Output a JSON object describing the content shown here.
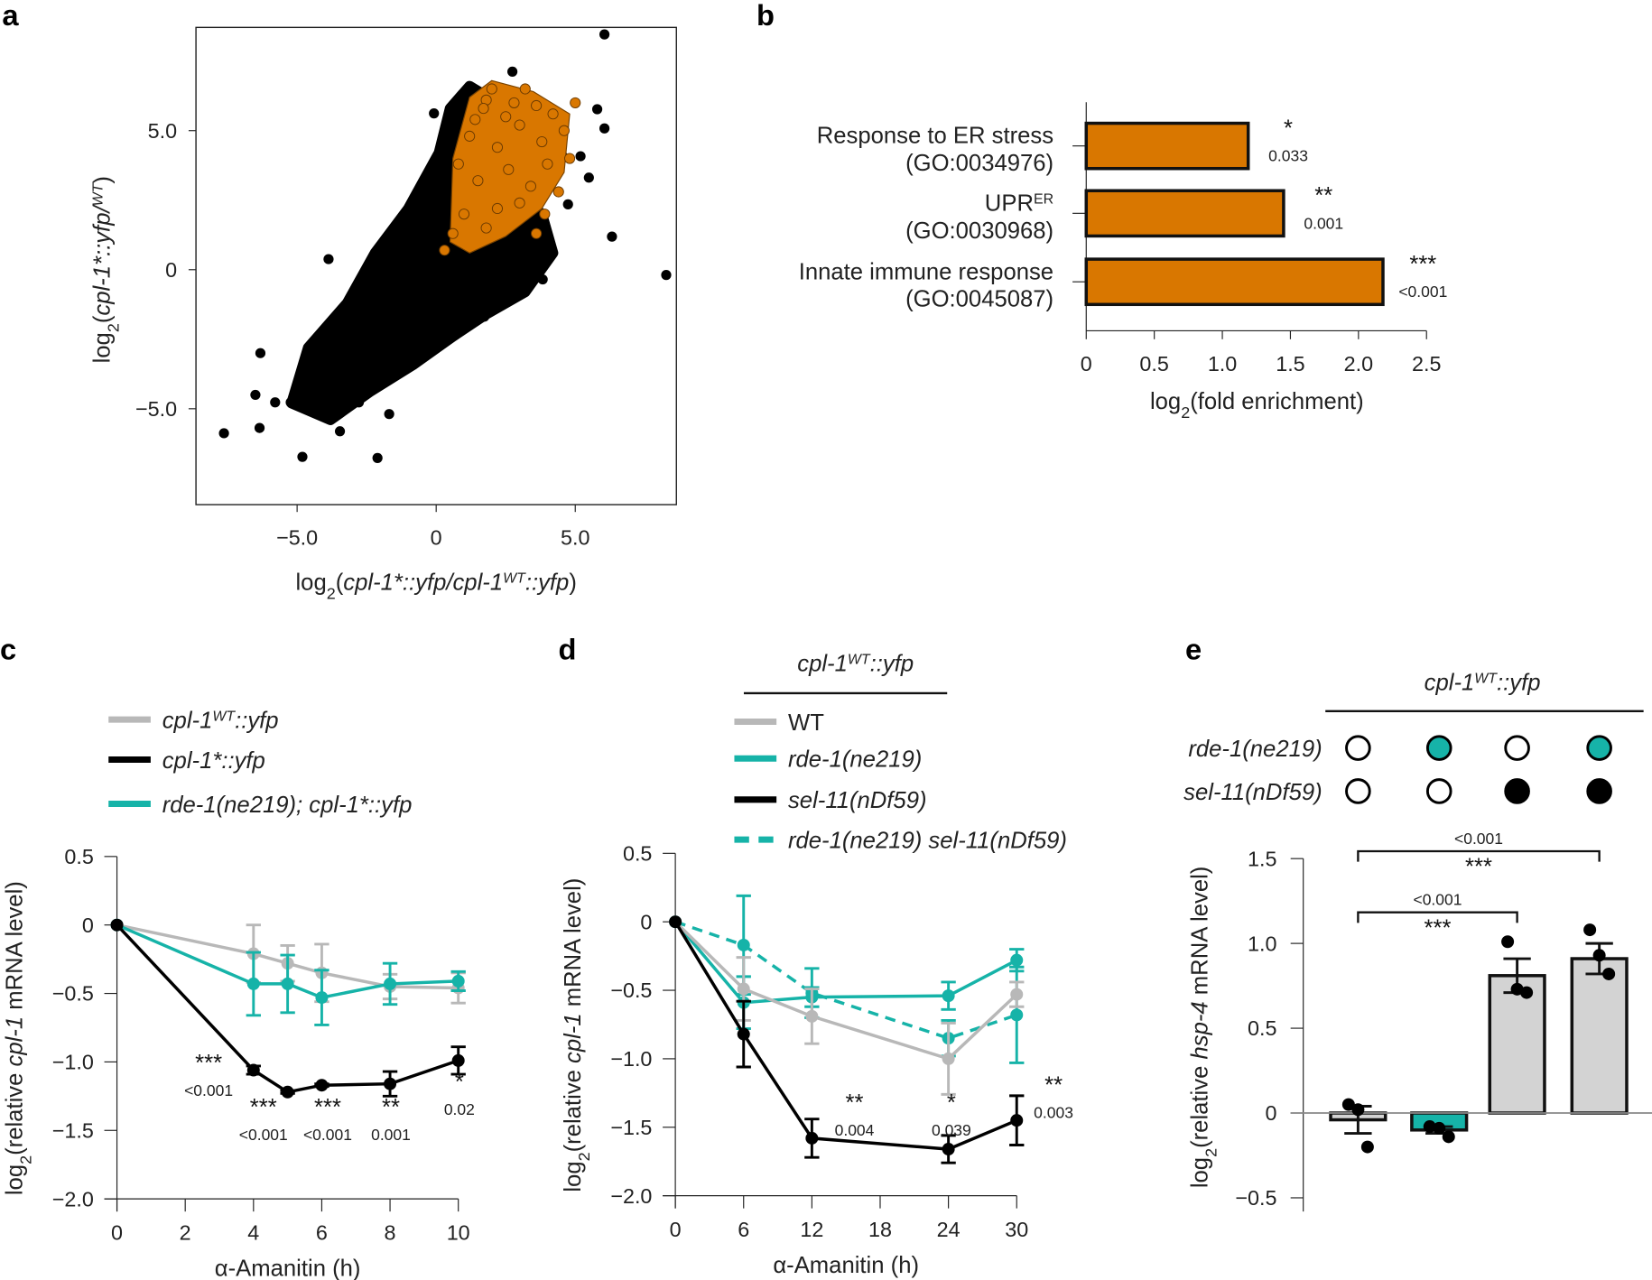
{
  "panel_letters": [
    "a",
    "b",
    "c",
    "d",
    "e"
  ],
  "colors": {
    "black": "#000000",
    "orange": "#d97700",
    "teal": "#16b3a8",
    "gray": "#b8b8b8",
    "bar_gray": "#d3d3d3"
  },
  "chart_data": [
    {
      "panel": "a",
      "type": "scatter",
      "xlabel": [
        [
          "log",
          ""
        ],
        [
          "2",
          "sub"
        ],
        [
          "(",
          ""
        ],
        [
          "cpl-1*::yfp/cpl-1",
          "i"
        ],
        [
          "WT",
          "isup"
        ],
        [
          "::yfp",
          "i"
        ],
        [
          ")",
          ""
        ]
      ],
      "ylabel": [
        [
          "log",
          ""
        ],
        [
          "2",
          "sub"
        ],
        [
          "(",
          ""
        ],
        [
          "cpl-1*::yfp/",
          "i"
        ],
        [
          "WT",
          "isup"
        ],
        [
          ")",
          ""
        ]
      ],
      "xlim": [
        -8.6,
        8.6
      ],
      "ylim": [
        -8.6,
        8.8
      ],
      "xticks": [
        {
          "v": -5,
          "label": "−5.0"
        },
        {
          "v": 0,
          "label": "0"
        },
        {
          "v": 5,
          "label": "5.0"
        }
      ],
      "yticks": [
        {
          "v": 5,
          "label": "5.0"
        },
        {
          "v": 0,
          "label": "0"
        },
        {
          "v": -5,
          "label": "−5.0"
        }
      ],
      "grid": false,
      "dense_region_all_genes": [
        [
          -5.2,
          -4.8
        ],
        [
          -4.6,
          -2.8
        ],
        [
          -3.2,
          -1.2
        ],
        [
          -2.2,
          0.6
        ],
        [
          -1,
          2.2
        ],
        [
          0.1,
          4.2
        ],
        [
          0.5,
          5.8
        ],
        [
          1.2,
          6.6
        ],
        [
          2.2,
          6.0
        ],
        [
          2.6,
          3.0
        ],
        [
          3.8,
          2.0
        ],
        [
          4.2,
          0.6
        ],
        [
          3.2,
          -0.8
        ],
        [
          1.8,
          -1.6
        ],
        [
          0.6,
          -2.4
        ],
        [
          -0.8,
          -3.4
        ],
        [
          -2.4,
          -4.4
        ],
        [
          -3.8,
          -5.4
        ]
      ],
      "dense_region_highlighted": [
        [
          0.5,
          1
        ],
        [
          0.6,
          4
        ],
        [
          1.2,
          6.2
        ],
        [
          2,
          6.8
        ],
        [
          3.5,
          6.4
        ],
        [
          4.8,
          5.6
        ],
        [
          4.6,
          3.5
        ],
        [
          3.8,
          2.2
        ],
        [
          2.5,
          1.2
        ],
        [
          1.2,
          0.6
        ]
      ],
      "points_all_genes": [
        [
          6.05,
          8.46
        ],
        [
          8.27,
          -0.19
        ],
        [
          6.32,
          1.19
        ],
        [
          -7.63,
          -5.88
        ],
        [
          -6.32,
          -3.0
        ],
        [
          -6.5,
          -4.5
        ],
        [
          -6.35,
          -5.69
        ],
        [
          -4.81,
          -6.73
        ],
        [
          -2.11,
          -6.77
        ],
        [
          -1.69,
          -5.19
        ],
        [
          -3.87,
          0.38
        ],
        [
          -3.46,
          -5.81
        ],
        [
          2.74,
          7.12
        ],
        [
          6.05,
          5.08
        ],
        [
          3.83,
          -0.35
        ],
        [
          5.79,
          5.77
        ],
        [
          5.19,
          4.08
        ],
        [
          4.74,
          2.35
        ],
        [
          -0.08,
          5.62
        ],
        [
          0.23,
          4.08
        ],
        [
          -0.71,
          2.54
        ],
        [
          -2.18,
          0.04
        ],
        [
          -2.97,
          -1.31
        ],
        [
          -4.66,
          -3.62
        ],
        [
          -5.79,
          -4.77
        ],
        [
          -4.29,
          -4.58
        ],
        [
          -3.16,
          -3.42
        ],
        [
          -2.78,
          -4.77
        ],
        [
          -3.53,
          -2.85
        ],
        [
          2.11,
          -0.92
        ],
        [
          3.23,
          0.23
        ],
        [
          3.61,
          1.0
        ],
        [
          4.55,
          4.08
        ],
        [
          5.49,
          3.31
        ],
        [
          1.35,
          6.38
        ],
        [
          0.71,
          5.31
        ],
        [
          1.73,
          -1.69
        ],
        [
          0.6,
          -1.69
        ],
        [
          -1.28,
          -2.85
        ],
        [
          -2.41,
          -2.46
        ],
        [
          -5.23,
          -4.77
        ]
      ],
      "points_highlighted": [
        [
          3.2,
          6.5
        ],
        [
          5.0,
          6.0
        ],
        [
          1.8,
          6.1
        ],
        [
          3.6,
          1.3
        ],
        [
          0.3,
          0.7
        ],
        [
          2.0,
          6.5
        ],
        [
          1.7,
          5.8
        ],
        [
          2.5,
          5.5
        ],
        [
          3.0,
          5.2
        ],
        [
          4.2,
          5.6
        ],
        [
          4.6,
          5.0
        ],
        [
          3.8,
          4.6
        ],
        [
          2.2,
          4.4
        ],
        [
          1.2,
          4.8
        ],
        [
          0.8,
          3.8
        ],
        [
          1.5,
          3.2
        ],
        [
          2.6,
          3.6
        ],
        [
          3.4,
          3.0
        ],
        [
          4.0,
          3.8
        ],
        [
          4.8,
          4.0
        ],
        [
          3.0,
          2.4
        ],
        [
          2.2,
          2.2
        ],
        [
          1.0,
          2.0
        ],
        [
          0.6,
          1.3
        ],
        [
          1.8,
          1.5
        ],
        [
          3.9,
          2.0
        ],
        [
          4.4,
          2.8
        ],
        [
          2.8,
          6.0
        ],
        [
          3.6,
          5.9
        ],
        [
          1.4,
          5.4
        ]
      ]
    },
    {
      "panel": "b",
      "type": "bar",
      "orientation": "horizontal",
      "categories": [
        {
          "line1": [
            [
              "Response to ER stress",
              ""
            ]
          ],
          "line2": "(GO:0034976)"
        },
        {
          "line1": [
            [
              "UPR",
              ""
            ],
            [
              "ER",
              "sup"
            ]
          ],
          "line2": "(GO:0030968)"
        },
        {
          "line1": [
            [
              "Innate immune response",
              ""
            ]
          ],
          "line2": "(GO:0045087)"
        }
      ],
      "values": [
        1.19,
        1.45,
        2.18
      ],
      "significance": [
        {
          "stars": "*",
          "p": "0.033"
        },
        {
          "stars": "**",
          "p": "0.001"
        },
        {
          "stars": "***",
          "p": "<0.001"
        }
      ],
      "xlim": [
        0,
        2.5
      ],
      "xticks": [
        {
          "v": 0,
          "label": "0"
        },
        {
          "v": 0.5,
          "label": "0.5"
        },
        {
          "v": 1,
          "label": "1.0"
        },
        {
          "v": 1.5,
          "label": "1.5"
        },
        {
          "v": 2,
          "label": "2.0"
        },
        {
          "v": 2.5,
          "label": "2.5"
        }
      ],
      "xlabel": [
        [
          "log",
          ""
        ],
        [
          "2",
          "sub"
        ],
        [
          "(fold enrichment)",
          ""
        ]
      ]
    },
    {
      "panel": "c",
      "type": "line",
      "xlabel": [
        [
          "α-Amanitin (h)",
          ""
        ]
      ],
      "ylabel": [
        [
          "log",
          ""
        ],
        [
          "2",
          "sub"
        ],
        [
          "(relative ",
          ""
        ],
        [
          "cpl-1",
          "i"
        ],
        [
          " mRNA level)",
          ""
        ]
      ],
      "xlim": [
        0,
        10
      ],
      "ylim": [
        -2.0,
        0.5
      ],
      "xticks": [
        {
          "v": 0,
          "label": "0"
        },
        {
          "v": 2,
          "label": "2"
        },
        {
          "v": 4,
          "label": "4"
        },
        {
          "v": 6,
          "label": "6"
        },
        {
          "v": 8,
          "label": "8"
        },
        {
          "v": 10,
          "label": "10"
        }
      ],
      "yticks": [
        {
          "v": 0.5,
          "label": "0.5"
        },
        {
          "v": 0,
          "label": "0"
        },
        {
          "v": -0.5,
          "label": "−0.5"
        },
        {
          "v": -1,
          "label": "−1.0"
        },
        {
          "v": -1.5,
          "label": "−1.5"
        },
        {
          "v": -2,
          "label": "−2.0"
        }
      ],
      "series": [
        {
          "name": [
            [
              "cpl-1",
              "i"
            ],
            [
              "WT",
              "isup"
            ],
            [
              "::yfp",
              "i"
            ]
          ],
          "color": "gray",
          "dashed": false,
          "x": [
            0,
            4,
            5,
            6,
            8,
            10
          ],
          "y": [
            0,
            -0.21,
            -0.28,
            -0.35,
            -0.45,
            -0.46
          ],
          "sem": [
            0,
            0.21,
            0.13,
            0.21,
            0.09,
            0.11
          ]
        },
        {
          "name": [
            [
              "cpl-1*::yfp",
              "i"
            ]
          ],
          "color": "black",
          "dashed": false,
          "x": [
            0,
            4,
            5,
            6,
            8,
            10
          ],
          "y": [
            0,
            -1.06,
            -1.22,
            -1.17,
            -1.16,
            -0.99
          ],
          "sem": [
            0,
            0.03,
            0.01,
            0.01,
            0.09,
            0.1
          ]
        },
        {
          "name": [
            [
              "rde-1(ne219); cpl-1*::yfp",
              "i"
            ]
          ],
          "color": "teal",
          "dashed": false,
          "x": [
            0,
            4,
            5,
            6,
            8,
            10
          ],
          "y": [
            0,
            -0.43,
            -0.43,
            -0.53,
            -0.43,
            -0.41
          ],
          "sem": [
            0,
            0.23,
            0.21,
            0.2,
            0.15,
            0.07
          ]
        }
      ],
      "draw_order": [
        0,
        2,
        1
      ],
      "annotations": [
        {
          "x": 4,
          "stars": "***",
          "p": "<0.001"
        },
        {
          "x": 5,
          "stars": "***",
          "p": "<0.001"
        },
        {
          "x": 6,
          "stars": "***",
          "p": "<0.001"
        },
        {
          "x": 8,
          "stars": "**",
          "p": "0.001"
        },
        {
          "x": 10,
          "stars": "*",
          "p": "0.02"
        }
      ],
      "legend": "top-left"
    },
    {
      "panel": "d",
      "type": "line",
      "legend_title": [
        [
          "cpl-1",
          "i"
        ],
        [
          "WT",
          "isup"
        ],
        [
          "::yfp",
          "i"
        ]
      ],
      "xlabel": [
        [
          "α-Amanitin (h)",
          ""
        ]
      ],
      "ylabel": [
        [
          "log",
          ""
        ],
        [
          "2",
          "sub"
        ],
        [
          "(relative ",
          ""
        ],
        [
          "cpl-1",
          "i"
        ],
        [
          " mRNA level)",
          ""
        ]
      ],
      "xlim": [
        0,
        30
      ],
      "ylim": [
        -2.0,
        0.5
      ],
      "xticks": [
        {
          "v": 0,
          "label": "0"
        },
        {
          "v": 6,
          "label": "6"
        },
        {
          "v": 12,
          "label": "12"
        },
        {
          "v": 18,
          "label": "18"
        },
        {
          "v": 24,
          "label": "24"
        },
        {
          "v": 30,
          "label": "30"
        }
      ],
      "yticks": [
        {
          "v": 0.5,
          "label": "0.5"
        },
        {
          "v": 0,
          "label": "0"
        },
        {
          "v": -0.5,
          "label": "−0.5"
        },
        {
          "v": -1,
          "label": "−1.0"
        },
        {
          "v": -1.5,
          "label": "−1.5"
        },
        {
          "v": -2,
          "label": "−2.0"
        }
      ],
      "series": [
        {
          "name": [
            [
              "WT",
              ""
            ]
          ],
          "color": "gray",
          "dashed": false,
          "x": [
            0,
            6,
            12,
            24,
            30
          ],
          "y": [
            0,
            -0.49,
            -0.69,
            -1.0,
            -0.53
          ],
          "sem": [
            0,
            0.23,
            0.2,
            0.26,
            0.09
          ]
        },
        {
          "name": [
            [
              "rde-1(ne219)",
              "i"
            ]
          ],
          "color": "teal",
          "dashed": false,
          "x": [
            0,
            6,
            12,
            24,
            30
          ],
          "y": [
            0,
            -0.59,
            -0.55,
            -0.54,
            -0.28
          ],
          "sem": [
            0,
            0.19,
            0.07,
            0.1,
            0.08
          ]
        },
        {
          "name": [
            [
              "sel-11(nDf59)",
              "i"
            ]
          ],
          "color": "black",
          "dashed": false,
          "x": [
            0,
            6,
            12,
            24,
            30
          ],
          "y": [
            0,
            -0.82,
            -1.58,
            -1.66,
            -1.45
          ],
          "sem": [
            0,
            0.24,
            0.14,
            0.1,
            0.18
          ]
        },
        {
          "name": [
            [
              "rde-1(ne219) sel-11(nDf59)",
              "i"
            ]
          ],
          "color": "teal",
          "dashed": true,
          "x": [
            0,
            6,
            12,
            24,
            30
          ],
          "y": [
            0,
            -0.17,
            -0.52,
            -0.85,
            -0.68
          ],
          "sem": [
            0,
            0.36,
            0.18,
            0.13,
            0.35
          ]
        }
      ],
      "draw_order": [
        3,
        1,
        0,
        2
      ],
      "annotations": [
        {
          "x": 12,
          "stars": "**",
          "p": "0.004"
        },
        {
          "x": 24,
          "stars": "*",
          "p": "0.039"
        },
        {
          "x": 30,
          "stars": "**",
          "p": "0.003"
        }
      ],
      "legend": "top"
    },
    {
      "panel": "e",
      "type": "bar",
      "header": [
        [
          "cpl-1",
          "i"
        ],
        [
          "WT",
          "isup"
        ],
        [
          "::yfp",
          "i"
        ]
      ],
      "genotype_rows": [
        {
          "label": "rde-1(ne219)",
          "states": [
            "open",
            "teal",
            "open",
            "teal"
          ]
        },
        {
          "label": "sel-11(nDf59)",
          "states": [
            "open",
            "open",
            "filled",
            "filled"
          ]
        }
      ],
      "ylabel": [
        [
          "log",
          ""
        ],
        [
          "2",
          "sub"
        ],
        [
          "(relative ",
          ""
        ],
        [
          "hsp-4",
          "i"
        ],
        [
          " mRNA level)",
          ""
        ]
      ],
      "ylim": [
        -0.5,
        1.5
      ],
      "yticks": [
        {
          "v": 1.5,
          "label": "1.5"
        },
        {
          "v": 1,
          "label": "1.0"
        },
        {
          "v": 0.5,
          "label": "0.5"
        },
        {
          "v": 0,
          "label": "0"
        },
        {
          "v": -0.5,
          "label": "−0.5"
        }
      ],
      "values": [
        -0.04,
        -0.1,
        0.81,
        0.91
      ],
      "sem": [
        0.08,
        0.02,
        0.1,
        0.09
      ],
      "bar_colors": [
        "bar_gray",
        "teal",
        "bar_gray",
        "bar_gray"
      ],
      "replicates": [
        [
          0.05,
          -0.2,
          0.02
        ],
        [
          -0.08,
          -0.14,
          -0.09
        ],
        [
          1.01,
          0.71,
          0.73
        ],
        [
          1.08,
          0.82,
          0.93
        ]
      ],
      "comparisons": [
        {
          "from": 0,
          "to": 3,
          "p": "<0.001",
          "stars": "***"
        },
        {
          "from": 0,
          "to": 2,
          "p": "<0.001",
          "stars": "***"
        }
      ]
    }
  ]
}
